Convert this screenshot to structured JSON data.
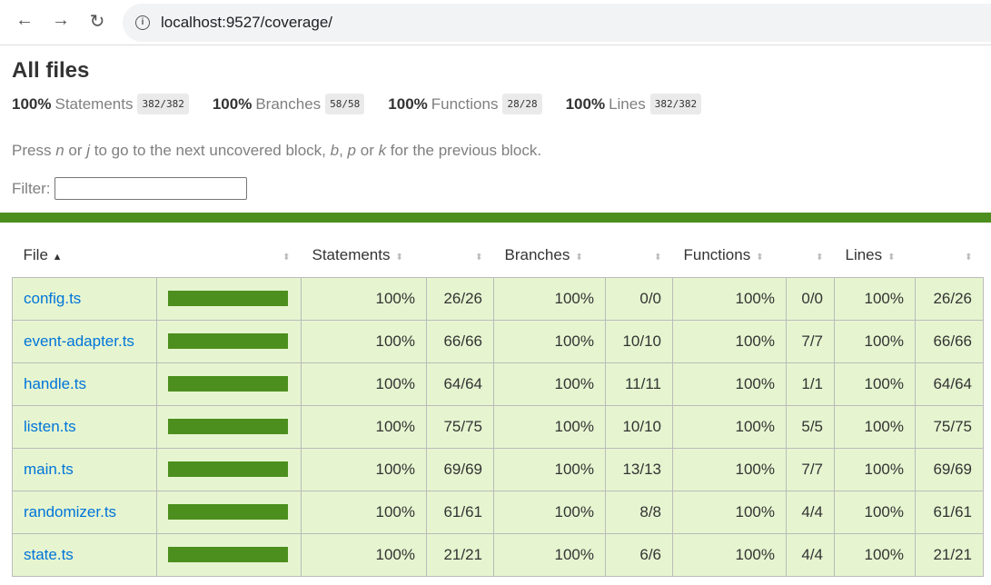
{
  "browser": {
    "url": "localhost:9527/coverage/",
    "back": "←",
    "forward": "→",
    "reload": "↻"
  },
  "title": "All files",
  "summary": [
    {
      "pct": "100%",
      "label": "Statements",
      "fraction": "382/382"
    },
    {
      "pct": "100%",
      "label": "Branches",
      "fraction": "58/58"
    },
    {
      "pct": "100%",
      "label": "Functions",
      "fraction": "28/28"
    },
    {
      "pct": "100%",
      "label": "Lines",
      "fraction": "382/382"
    }
  ],
  "hint": {
    "a": "Press ",
    "n": "n",
    "b": " or ",
    "j": "j",
    "c": " to go to the next uncovered block, ",
    "bk": "b",
    "d": ", ",
    "p": "p",
    "e": " or ",
    "k": "k",
    "f": " for the previous block."
  },
  "filter": {
    "label": "Filter:",
    "value": ""
  },
  "colors": {
    "accent": "#4d8f1e",
    "row_bg": "#e6f5d0",
    "link": "#0074d9"
  },
  "table": {
    "headers": {
      "file": "File",
      "statements": "Statements",
      "branches": "Branches",
      "functions": "Functions",
      "lines": "Lines"
    },
    "sort_indicator": "▲",
    "rows": [
      {
        "file": "config.ts",
        "coverage": 100,
        "st_pct": "100%",
        "st": "26/26",
        "br_pct": "100%",
        "br": "0/0",
        "fn_pct": "100%",
        "fn": "0/0",
        "ln_pct": "100%",
        "ln": "26/26"
      },
      {
        "file": "event-adapter.ts",
        "coverage": 100,
        "st_pct": "100%",
        "st": "66/66",
        "br_pct": "100%",
        "br": "10/10",
        "fn_pct": "100%",
        "fn": "7/7",
        "ln_pct": "100%",
        "ln": "66/66"
      },
      {
        "file": "handle.ts",
        "coverage": 100,
        "st_pct": "100%",
        "st": "64/64",
        "br_pct": "100%",
        "br": "11/11",
        "fn_pct": "100%",
        "fn": "1/1",
        "ln_pct": "100%",
        "ln": "64/64"
      },
      {
        "file": "listen.ts",
        "coverage": 100,
        "st_pct": "100%",
        "st": "75/75",
        "br_pct": "100%",
        "br": "10/10",
        "fn_pct": "100%",
        "fn": "5/5",
        "ln_pct": "100%",
        "ln": "75/75"
      },
      {
        "file": "main.ts",
        "coverage": 100,
        "st_pct": "100%",
        "st": "69/69",
        "br_pct": "100%",
        "br": "13/13",
        "fn_pct": "100%",
        "fn": "7/7",
        "ln_pct": "100%",
        "ln": "69/69"
      },
      {
        "file": "randomizer.ts",
        "coverage": 100,
        "st_pct": "100%",
        "st": "61/61",
        "br_pct": "100%",
        "br": "8/8",
        "fn_pct": "100%",
        "fn": "4/4",
        "ln_pct": "100%",
        "ln": "61/61"
      },
      {
        "file": "state.ts",
        "coverage": 100,
        "st_pct": "100%",
        "st": "21/21",
        "br_pct": "100%",
        "br": "6/6",
        "fn_pct": "100%",
        "fn": "4/4",
        "ln_pct": "100%",
        "ln": "21/21"
      }
    ]
  }
}
